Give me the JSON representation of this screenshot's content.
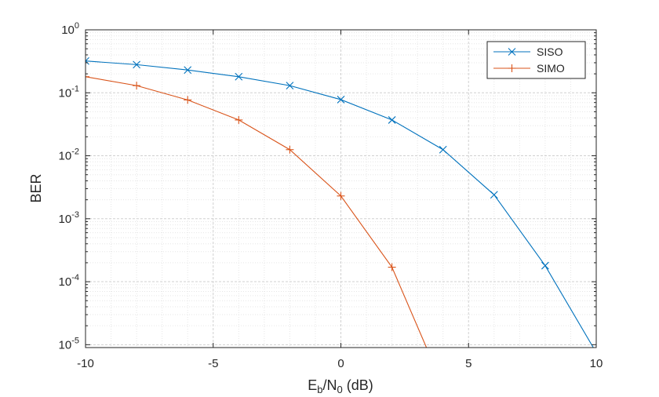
{
  "chart_data": {
    "type": "line",
    "title": "",
    "xlabel": {
      "main": "E",
      "sub1": "b",
      "mid": "/N",
      "sub2": "0",
      "tail": " (dB)"
    },
    "ylabel": "BER",
    "xlim": [
      -10,
      10
    ],
    "ylim": [
      9e-06,
      1
    ],
    "yscale": "log",
    "x_ticks": [
      {
        "value": -10,
        "label": "-10"
      },
      {
        "value": -5,
        "label": "-5"
      },
      {
        "value": 0,
        "label": "0"
      },
      {
        "value": 5,
        "label": "5"
      },
      {
        "value": 10,
        "label": "10"
      }
    ],
    "y_ticks": [
      {
        "value": 1,
        "base": "10",
        "exp": "0"
      },
      {
        "value": 0.1,
        "base": "10",
        "exp": "-1"
      },
      {
        "value": 0.01,
        "base": "10",
        "exp": "-2"
      },
      {
        "value": 0.001,
        "base": "10",
        "exp": "-3"
      },
      {
        "value": 0.0001,
        "base": "10",
        "exp": "-4"
      },
      {
        "value": 1e-05,
        "base": "10",
        "exp": "-5"
      }
    ],
    "grid": {
      "major": true,
      "minor": true
    },
    "legend": {
      "position": "top-right"
    },
    "series": [
      {
        "name": "SISO",
        "color": "#0072BD",
        "marker": "x",
        "x": [
          -10,
          -8,
          -6,
          -4,
          -2,
          0,
          2,
          4,
          6,
          8,
          10
        ],
        "y": [
          0.32,
          0.28,
          0.23,
          0.18,
          0.13,
          0.078,
          0.037,
          0.0125,
          0.0024,
          0.00018,
          7.5e-06
        ]
      },
      {
        "name": "SIMO",
        "color": "#D95319",
        "marker": "plus",
        "x": [
          -10,
          -8,
          -6,
          -4,
          -2,
          0,
          2,
          4
        ],
        "y": [
          0.18,
          0.13,
          0.077,
          0.037,
          0.0125,
          0.0023,
          0.00017,
          2.2e-06
        ]
      }
    ]
  }
}
